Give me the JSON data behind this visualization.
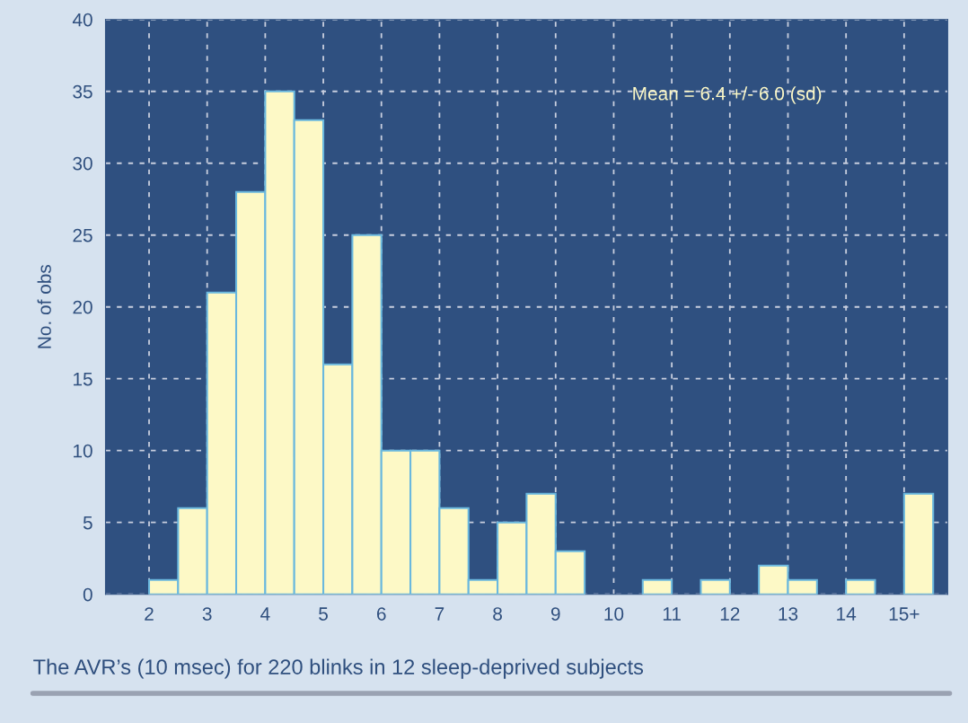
{
  "chart_data": {
    "type": "histogram",
    "title": "The AVR’s (10 msec) for 220 blinks in 12 sleep-deprived subjects",
    "ylabel": "No. of obs",
    "bins": [
      2,
      2.5,
      3,
      3.5,
      4,
      4.5,
      5,
      5.5,
      6,
      6.5,
      7,
      7.5,
      8,
      8.5,
      9,
      9.5,
      10,
      10.5,
      11,
      11.5,
      12,
      12.5,
      13,
      13.5,
      14,
      14.5,
      15,
      15.5
    ],
    "values": [
      1,
      6,
      21,
      28,
      35,
      33,
      16,
      25,
      10,
      10,
      6,
      1,
      5,
      7,
      3,
      0,
      0,
      1,
      0,
      1,
      0,
      2,
      1,
      0,
      1,
      0,
      7
    ],
    "color": "#fdf9c6",
    "xlim": [
      1.25,
      15.75
    ],
    "xticks": [
      2,
      3,
      4,
      5,
      6,
      7,
      8,
      9,
      10,
      11,
      12,
      13,
      14,
      {
        "value": 15,
        "label": "15+"
      }
    ],
    "ylim": [
      0,
      40
    ],
    "yticks": [
      0,
      5,
      10,
      15,
      20,
      25,
      30,
      35,
      40
    ],
    "grid": true,
    "annotations": [
      "Mean = 6.4 +/- 6.0 (sd)"
    ]
  }
}
